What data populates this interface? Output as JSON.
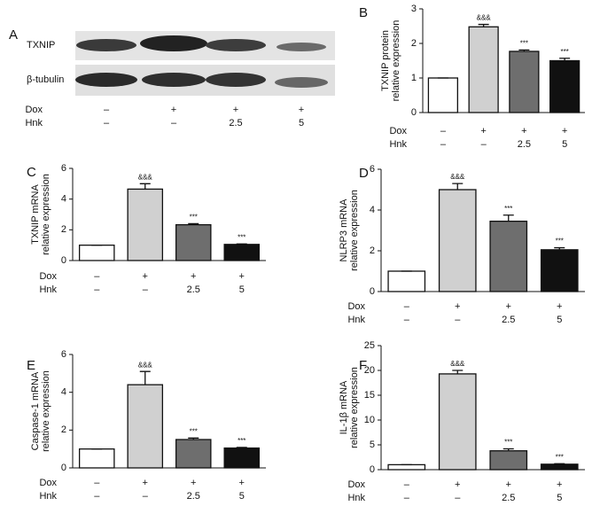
{
  "blot": {
    "panel": "A",
    "rows": [
      "TXNIP",
      "β-tubulin"
    ],
    "treatments": [
      {
        "name": "Dox",
        "labels": [
          "–",
          "+",
          "+",
          "+"
        ]
      },
      {
        "name": "Hnk",
        "labels": [
          "–",
          "–",
          "2.5",
          "5"
        ]
      }
    ]
  },
  "chart_data": [
    {
      "type": "bar",
      "panel": "B",
      "ylabel": [
        "TXNIP protein",
        "relative expression"
      ],
      "values": [
        1,
        2.48,
        1.77,
        1.5
      ],
      "errors": [
        0,
        0.07,
        0.04,
        0.07
      ],
      "annotations": [
        null,
        "&&&",
        "***",
        "***"
      ],
      "colors": [
        "#ffffff",
        "#d0d0d0",
        "#6e6e6e",
        "#111111"
      ],
      "ylim": [
        0,
        3
      ],
      "yticks": [
        0,
        1,
        2,
        3
      ],
      "treatments": [
        {
          "name": "Dox",
          "labels": [
            "–",
            "+",
            "+",
            "+"
          ]
        },
        {
          "name": "Hnk",
          "labels": [
            "–",
            "–",
            "2.5",
            "5"
          ]
        }
      ]
    },
    {
      "type": "bar",
      "panel": "C",
      "ylabel": [
        "TXNIP mRNA",
        "relative expression"
      ],
      "values": [
        1,
        4.65,
        2.33,
        1.05
      ],
      "errors": [
        0,
        0.35,
        0.07,
        0.03
      ],
      "annotations": [
        null,
        "&&&",
        "***",
        "***"
      ],
      "colors": [
        "#ffffff",
        "#d0d0d0",
        "#6e6e6e",
        "#111111"
      ],
      "ylim": [
        0,
        6
      ],
      "yticks": [
        0,
        2,
        4,
        6
      ],
      "treatments": [
        {
          "name": "Dox",
          "labels": [
            "–",
            "+",
            "+",
            "+"
          ]
        },
        {
          "name": "Hnk",
          "labels": [
            "–",
            "–",
            "2.5",
            "5"
          ]
        }
      ]
    },
    {
      "type": "bar",
      "panel": "D",
      "ylabel": [
        "NLRP3 mRNA",
        "relative expression"
      ],
      "values": [
        1,
        5.0,
        3.45,
        2.05
      ],
      "errors": [
        0,
        0.3,
        0.3,
        0.1
      ],
      "annotations": [
        null,
        "&&&",
        "***",
        "***"
      ],
      "colors": [
        "#ffffff",
        "#d0d0d0",
        "#6e6e6e",
        "#111111"
      ],
      "ylim": [
        0,
        6
      ],
      "yticks": [
        0,
        2,
        4,
        6
      ],
      "treatments": [
        {
          "name": "Dox",
          "labels": [
            "–",
            "+",
            "+",
            "+"
          ]
        },
        {
          "name": "Hnk",
          "labels": [
            "–",
            "–",
            "2.5",
            "5"
          ]
        }
      ]
    },
    {
      "type": "bar",
      "panel": "E",
      "ylabel": [
        "Caspase-1 mRNA",
        "relative expression"
      ],
      "values": [
        1,
        4.4,
        1.5,
        1.05
      ],
      "errors": [
        0,
        0.7,
        0.08,
        0.03
      ],
      "annotations": [
        null,
        "&&&",
        "***",
        "***"
      ],
      "colors": [
        "#ffffff",
        "#d0d0d0",
        "#6e6e6e",
        "#111111"
      ],
      "ylim": [
        0,
        6
      ],
      "yticks": [
        0,
        2,
        4,
        6
      ],
      "treatments": [
        {
          "name": "Dox",
          "labels": [
            "–",
            "+",
            "+",
            "+"
          ]
        },
        {
          "name": "Hnk",
          "labels": [
            "–",
            "–",
            "2.5",
            "5"
          ]
        }
      ]
    },
    {
      "type": "bar",
      "panel": "F",
      "ylabel": [
        "IL-1β mRNA",
        "relative expression"
      ],
      "values": [
        1,
        19.3,
        3.8,
        1.1
      ],
      "errors": [
        0,
        0.7,
        0.4,
        0.1
      ],
      "annotations": [
        null,
        "&&&",
        "***",
        "***"
      ],
      "colors": [
        "#ffffff",
        "#d0d0d0",
        "#6e6e6e",
        "#111111"
      ],
      "ylim": [
        0,
        25
      ],
      "yticks": [
        0,
        5,
        10,
        15,
        20,
        25
      ],
      "treatments": [
        {
          "name": "Dox",
          "labels": [
            "–",
            "+",
            "+",
            "+"
          ]
        },
        {
          "name": "Hnk",
          "labels": [
            "–",
            "–",
            "2.5",
            "5"
          ]
        }
      ]
    }
  ]
}
